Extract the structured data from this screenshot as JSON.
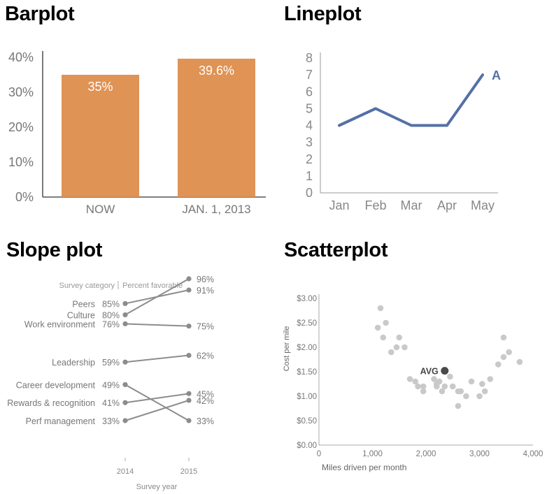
{
  "titles": {
    "barplot": "Barplot",
    "lineplot": "Lineplot",
    "slopeplot": "Slope plot",
    "scatterplot": "Scatterplot"
  },
  "colors": {
    "bar": "#df9355",
    "line": "#5470a6",
    "slope": "#8c8c8c",
    "scatter_point": "#c9c9c9",
    "scatter_avg": "#4a4a4a",
    "axis_text": "#777777"
  },
  "chart_data": [
    {
      "id": "barplot",
      "type": "bar",
      "categories": [
        "NOW",
        "JAN. 1, 2013"
      ],
      "values": [
        35,
        39.6
      ],
      "data_labels": [
        "35%",
        "39.6%"
      ],
      "ylim": [
        0,
        40
      ],
      "yticks": [
        0,
        10,
        20,
        30,
        40
      ],
      "ytick_labels": [
        "0%",
        "10%",
        "20%",
        "30%",
        "40%"
      ],
      "xlabel": "",
      "ylabel": "",
      "grid": false
    },
    {
      "id": "lineplot",
      "type": "line",
      "categories": [
        "Jan",
        "Feb",
        "Mar",
        "Apr",
        "May"
      ],
      "series": [
        {
          "name": "A",
          "values": [
            4,
            5,
            4,
            4,
            7
          ]
        }
      ],
      "ylim": [
        0,
        8
      ],
      "yticks": [
        0,
        1,
        2,
        3,
        4,
        5,
        6,
        7,
        8
      ],
      "grid": false
    },
    {
      "id": "slopeplot",
      "type": "line",
      "header_left": "Survey category",
      "header_right": "Percent favorable",
      "x": [
        "2014",
        "2015"
      ],
      "xlabel": "Survey year",
      "series": [
        {
          "name": "Peers",
          "values": [
            85,
            91
          ]
        },
        {
          "name": "Culture",
          "values": [
            80,
            96
          ]
        },
        {
          "name": "Work environment",
          "values": [
            76,
            75
          ]
        },
        {
          "name": "Leadership",
          "values": [
            59,
            62
          ]
        },
        {
          "name": "Career development",
          "values": [
            49,
            33
          ]
        },
        {
          "name": "Rewards & recognition",
          "values": [
            41,
            45
          ]
        },
        {
          "name": "Perf management",
          "values": [
            33,
            42
          ]
        }
      ],
      "ylim": [
        33,
        96
      ],
      "value_suffix": "%"
    },
    {
      "id": "scatterplot",
      "type": "scatter",
      "xlabel": "Miles driven per month",
      "ylabel": "Cost per mile",
      "xlim": [
        0,
        4000
      ],
      "ylim": [
        0,
        3
      ],
      "xticks": [
        0,
        1000,
        2000,
        3000,
        4000
      ],
      "xtick_labels": [
        "0",
        "1,000",
        "2,000",
        "3,000",
        "4,000"
      ],
      "yticks": [
        0,
        0.5,
        1,
        1.5,
        2,
        2.5,
        3
      ],
      "ytick_labels": [
        "$0.00",
        "$0.50",
        "$1.00",
        "$1.50",
        "$2.00",
        "$2.50",
        "$3.00"
      ],
      "points": [
        [
          1100,
          2.4
        ],
        [
          1150,
          2.8
        ],
        [
          1200,
          2.2
        ],
        [
          1250,
          2.5
        ],
        [
          1350,
          1.9
        ],
        [
          1450,
          2.0
        ],
        [
          1500,
          2.2
        ],
        [
          1600,
          2.0
        ],
        [
          1700,
          1.35
        ],
        [
          1800,
          1.3
        ],
        [
          1850,
          1.2
        ],
        [
          1950,
          1.2
        ],
        [
          1950,
          1.1
        ],
        [
          2150,
          1.35
        ],
        [
          2200,
          1.2
        ],
        [
          2200,
          1.25
        ],
        [
          2250,
          1.3
        ],
        [
          2300,
          1.1
        ],
        [
          2350,
          1.2
        ],
        [
          2450,
          1.4
        ],
        [
          2500,
          1.2
        ],
        [
          2600,
          1.1
        ],
        [
          2600,
          0.8
        ],
        [
          2650,
          1.1
        ],
        [
          2750,
          1.0
        ],
        [
          2850,
          1.3
        ],
        [
          3000,
          1.0
        ],
        [
          3050,
          1.25
        ],
        [
          3100,
          1.1
        ],
        [
          3200,
          1.35
        ],
        [
          3350,
          1.65
        ],
        [
          3450,
          2.2
        ],
        [
          3450,
          1.8
        ],
        [
          3550,
          1.9
        ],
        [
          3750,
          1.7
        ]
      ],
      "annotation": {
        "label": "AVG",
        "x": 2350,
        "y": 1.52
      },
      "grid": false
    }
  ]
}
